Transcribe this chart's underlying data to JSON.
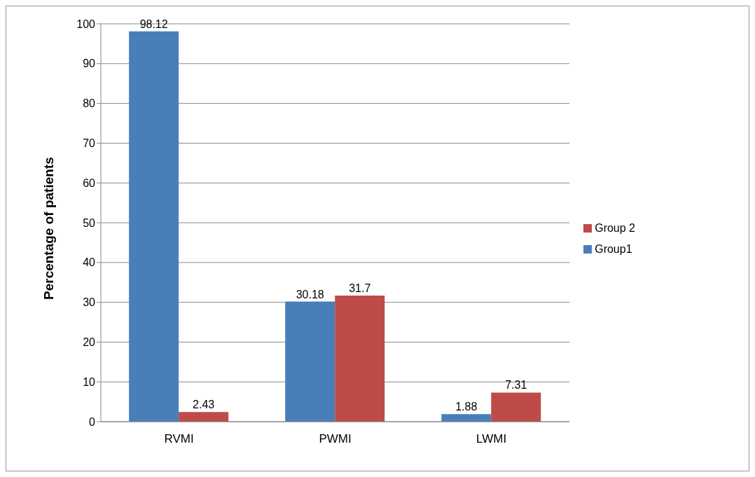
{
  "chart_data": {
    "type": "bar",
    "ylabel": "Percentage of patients",
    "categories": [
      "RVMI",
      "PWMI",
      "LWMI"
    ],
    "series": [
      {
        "name": "Group1",
        "color": "#4a7ebb",
        "values": [
          98.12,
          30.18,
          1.88
        ]
      },
      {
        "name": "Group 2",
        "color": "#be4b48",
        "values": [
          2.43,
          31.7,
          7.31
        ]
      }
    ],
    "ylim": [
      0,
      100
    ],
    "yticks": [
      0,
      10,
      20,
      30,
      40,
      50,
      60,
      70,
      80,
      90,
      100
    ],
    "grid": "y",
    "legend": "right",
    "data_labels": true
  }
}
